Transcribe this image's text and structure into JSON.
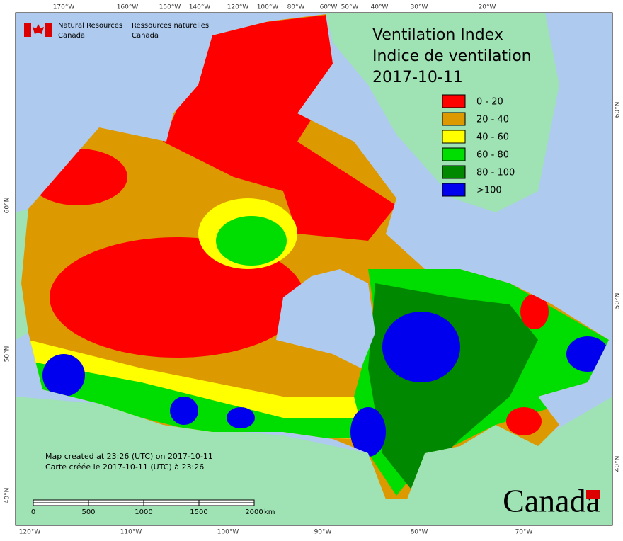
{
  "agency": {
    "en": [
      "Natural Resources",
      "Canada"
    ],
    "fr": [
      "Ressources naturelles",
      "Canada"
    ]
  },
  "title": [
    "Ventilation Index",
    "Indice de ventilation",
    "2017-10-11"
  ],
  "legend": [
    {
      "label": "0 - 20",
      "color": "#ff0000"
    },
    {
      "label": "20 - 40",
      "color": "#dd9900"
    },
    {
      "label": "40 - 60",
      "color": "#ffff00"
    },
    {
      "label": "60 - 80",
      "color": "#00dd00"
    },
    {
      "label": "80 - 100",
      "color": "#008800"
    },
    {
      "label": ">100",
      "color": "#0000ee"
    }
  ],
  "top_axis_labels": [
    "170°W",
    "160°W",
    "150°W",
    "140°W",
    "120°W",
    "100°W",
    "80°W",
    "60°W",
    "50°W",
    "40°W",
    "30°W",
    "20°W"
  ],
  "bottom_axis_labels": [
    "120°W",
    "110°W",
    "100°W",
    "90°W",
    "80°W",
    "70°W"
  ],
  "left_axis_labels": [
    "60°N",
    "50°N",
    "40°N"
  ],
  "right_axis_labels": [
    "60°N",
    "50°N",
    "40°N"
  ],
  "credits": [
    "Map created at 23:26 (UTC) on 2017-10-11",
    "Carte créée le 2017-10-11 (UTC) à 23:26"
  ],
  "scale_bar": {
    "labels": [
      "0",
      "500",
      "1000",
      "1500",
      "2000"
    ],
    "unit": "km"
  },
  "wordmark": "Canada"
}
